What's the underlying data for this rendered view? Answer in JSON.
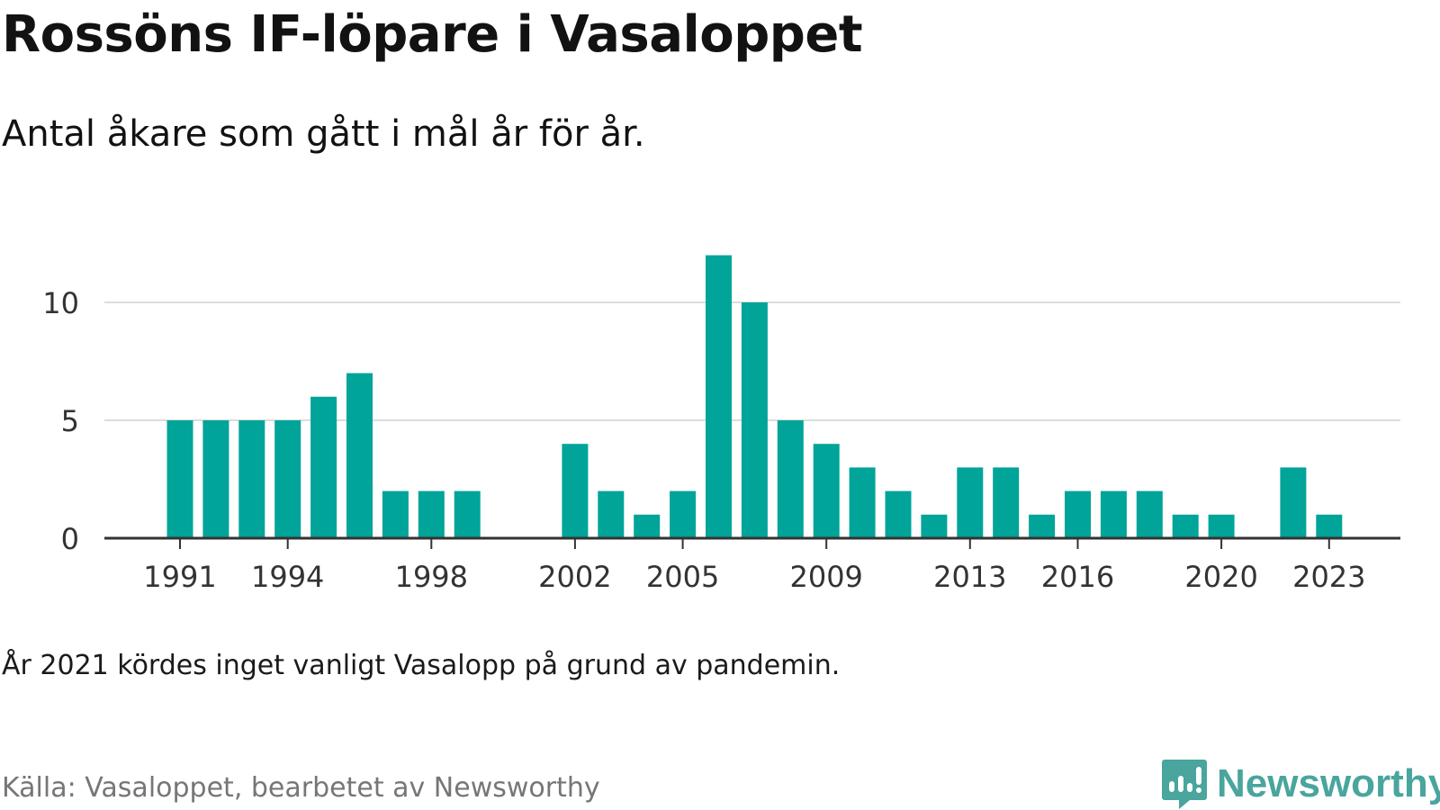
{
  "title": "Rossöns IF-löpare i Vasaloppet",
  "subtitle": "Antal åkare som gått i mål år för år.",
  "note": "År 2021 kördes inget vanligt Vasalopp på grund av pandemin.",
  "source": "Källa: Vasaloppet, bearbetet av Newsworthy",
  "logo_text": "Newsworthy",
  "colors": {
    "bar": "#00a499",
    "grid": "#dcdcdc",
    "axis": "#333333",
    "logo": "#49a59d"
  },
  "chart_data": {
    "type": "bar",
    "x": [
      1991,
      1992,
      1993,
      1994,
      1995,
      1996,
      1997,
      1998,
      1999,
      2000,
      2001,
      2002,
      2003,
      2004,
      2005,
      2006,
      2007,
      2008,
      2009,
      2010,
      2011,
      2012,
      2013,
      2014,
      2015,
      2016,
      2017,
      2018,
      2019,
      2020,
      2021,
      2022,
      2023
    ],
    "values": [
      5,
      5,
      5,
      5,
      6,
      7,
      2,
      2,
      2,
      0,
      0,
      4,
      2,
      1,
      2,
      12,
      10,
      5,
      4,
      3,
      2,
      1,
      3,
      3,
      1,
      2,
      2,
      2,
      1,
      1,
      0,
      3,
      1
    ],
    "xticks": [
      1991,
      1994,
      1998,
      2002,
      2005,
      2009,
      2013,
      2016,
      2020,
      2023
    ],
    "yticks": [
      0,
      5,
      10
    ],
    "ylim": [
      0,
      12
    ],
    "grid": true
  }
}
